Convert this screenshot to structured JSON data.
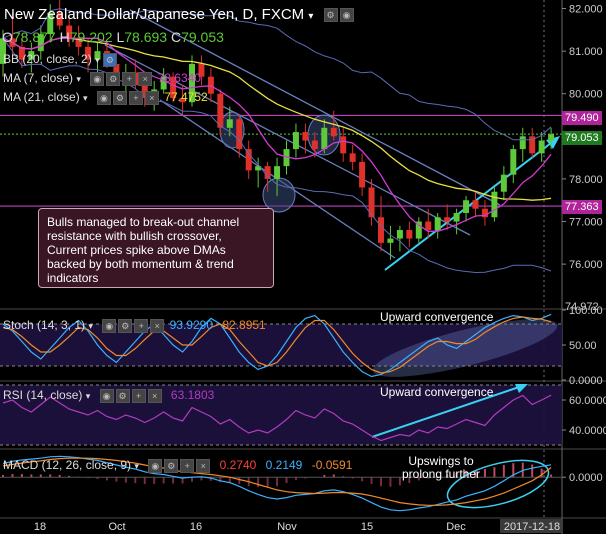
{
  "title": "New Zealand Dollar/Japanese Yen, D, FXCM",
  "ohlc": {
    "o_label": "O",
    "o": "78.877",
    "h_label": "H",
    "h": "79.202",
    "l_label": "L",
    "l": "78.693",
    "c_label": "C",
    "c": "79.053"
  },
  "indicators_main": [
    {
      "label": "BB (20, close, 2)",
      "value": ""
    },
    {
      "label": "MA (7, close)",
      "value": "78.6340"
    },
    {
      "label": "MA (21, close)",
      "value": "77.4752"
    }
  ],
  "price_tags": {
    "upper": "79.490",
    "current": "79.053",
    "lower": "77.363",
    "bottom": "74.972"
  },
  "annotation_text": "Bulls managed to break-out channel resistance with bullish crossover, Current prices spike above DMAs backed by both momentum & trend indicators",
  "stoch": {
    "label": "Stoch (14, 3, 1)",
    "k": "93.9290",
    "d": "82.8951",
    "note": "Upward convergence"
  },
  "rsi": {
    "label": "RSI (14, close)",
    "value": "63.1803",
    "note": "Upward convergence"
  },
  "macd": {
    "label": "MACD (12, 26, close, 9)",
    "v1": "0.2740",
    "v2": "0.2149",
    "v3": "-0.0591",
    "note": "Upswings to prolong further"
  },
  "colors": {
    "up": "#5ec93a",
    "down": "#e0302a",
    "ma7": "#d03cd0",
    "ma21": "#e8e040",
    "bb": "#5a6bb5",
    "accent": "#3ad0f0",
    "level": "#c040c0"
  },
  "chart_data": [
    {
      "type": "candlestick",
      "title": "New Zealand Dollar/Japanese Yen, D, FXCM",
      "y_axis_ticks": [
        "82.000",
        "81.000",
        "80.000",
        "79.000",
        "78.000",
        "77.000",
        "76.000"
      ],
      "ylim": [
        74.97,
        82.2
      ],
      "x_labels": [
        "18",
        "Oct",
        "16",
        "Nov",
        "15",
        "Dec",
        "2017-12-18"
      ],
      "ohlc": [
        [
          80.7,
          81.5,
          80.4,
          81.3
        ],
        [
          81.3,
          81.9,
          80.9,
          81.1
        ],
        [
          81.1,
          81.3,
          80.6,
          80.8
        ],
        [
          80.8,
          81.2,
          80.5,
          81.0
        ],
        [
          81.0,
          81.6,
          80.8,
          81.4
        ],
        [
          81.4,
          82.1,
          81.2,
          81.9
        ],
        [
          81.9,
          82.2,
          81.5,
          81.6
        ],
        [
          81.6,
          81.8,
          81.1,
          81.3
        ],
        [
          81.3,
          81.6,
          80.9,
          81.1
        ],
        [
          81.1,
          81.3,
          80.5,
          80.8
        ],
        [
          80.8,
          81.2,
          80.5,
          81.0
        ],
        [
          81.0,
          81.2,
          80.6,
          80.7
        ],
        [
          80.7,
          80.9,
          80.2,
          80.4
        ],
        [
          80.4,
          80.7,
          80.0,
          80.5
        ],
        [
          80.5,
          80.8,
          80.1,
          80.2
        ],
        [
          80.2,
          80.4,
          79.7,
          79.9
        ],
        [
          79.9,
          80.3,
          79.6,
          80.1
        ],
        [
          80.1,
          80.6,
          80.0,
          80.4
        ],
        [
          80.4,
          80.5,
          79.8,
          79.9
        ],
        [
          79.9,
          80.2,
          79.5,
          79.8
        ],
        [
          79.8,
          80.9,
          79.7,
          80.7
        ],
        [
          80.7,
          80.9,
          80.2,
          80.4
        ],
        [
          80.4,
          80.6,
          79.8,
          80.0
        ],
        [
          80.0,
          80.1,
          79.0,
          79.2
        ],
        [
          79.2,
          79.7,
          79.0,
          79.4
        ],
        [
          79.4,
          79.5,
          78.5,
          78.7
        ],
        [
          78.7,
          78.9,
          78.0,
          78.2
        ],
        [
          78.2,
          78.5,
          77.8,
          78.3
        ],
        [
          78.3,
          78.4,
          77.7,
          78.0
        ],
        [
          78.0,
          78.5,
          77.6,
          78.3
        ],
        [
          78.3,
          78.9,
          78.1,
          78.7
        ],
        [
          78.7,
          79.3,
          78.5,
          79.1
        ],
        [
          79.1,
          79.3,
          78.6,
          78.9
        ],
        [
          78.9,
          79.1,
          78.5,
          78.7
        ],
        [
          78.7,
          79.4,
          78.6,
          79.2
        ],
        [
          79.2,
          79.6,
          78.9,
          79.0
        ],
        [
          79.0,
          79.2,
          78.4,
          78.6
        ],
        [
          78.6,
          78.8,
          78.2,
          78.4
        ],
        [
          78.4,
          78.6,
          77.6,
          77.8
        ],
        [
          77.8,
          78.0,
          76.9,
          77.1
        ],
        [
          77.1,
          77.6,
          76.3,
          76.5
        ],
        [
          76.5,
          76.9,
          76.1,
          76.6
        ],
        [
          76.6,
          76.9,
          76.3,
          76.8
        ],
        [
          76.8,
          77.0,
          76.4,
          76.6
        ],
        [
          76.6,
          77.1,
          76.5,
          77.0
        ],
        [
          77.0,
          77.3,
          76.6,
          76.8
        ],
        [
          76.8,
          77.2,
          76.6,
          77.1
        ],
        [
          77.1,
          77.4,
          76.8,
          77.0
        ],
        [
          77.0,
          77.3,
          76.7,
          77.2
        ],
        [
          77.2,
          77.6,
          77.0,
          77.5
        ],
        [
          77.5,
          77.7,
          77.1,
          77.3
        ],
        [
          77.3,
          77.5,
          76.9,
          77.1
        ],
        [
          77.1,
          77.8,
          77.0,
          77.7
        ],
        [
          77.7,
          78.3,
          77.5,
          78.1
        ],
        [
          78.1,
          78.8,
          77.9,
          78.7
        ],
        [
          78.7,
          79.2,
          78.4,
          79.0
        ],
        [
          79.0,
          79.2,
          78.5,
          78.6
        ],
        [
          78.6,
          79.1,
          78.4,
          78.9
        ],
        [
          78.9,
          79.2,
          78.7,
          79.05
        ]
      ]
    },
    {
      "type": "line",
      "title": "Stoch (14, 3, 1)",
      "y_axis_ticks": [
        "100.00",
        "50.00",
        "0.0000"
      ],
      "ylim": [
        0,
        100
      ],
      "series": [
        {
          "name": "K",
          "values": [
            80,
            70,
            55,
            40,
            30,
            45,
            60,
            75,
            85,
            70,
            50,
            35,
            25,
            40,
            55,
            70,
            80,
            65,
            50,
            40,
            55,
            75,
            88,
            80,
            60,
            40,
            25,
            15,
            20,
            35,
            55,
            75,
            88,
            92,
            80,
            60,
            40,
            25,
            12,
            5,
            8,
            15,
            25,
            35,
            45,
            55,
            60,
            50,
            45,
            55,
            65,
            75,
            82,
            88,
            92,
            90,
            85,
            88,
            93.9
          ]
        },
        {
          "name": "D",
          "values": [
            75,
            72,
            62,
            50,
            40,
            40,
            50,
            62,
            75,
            72,
            60,
            45,
            35,
            35,
            45,
            58,
            70,
            70,
            60,
            50,
            50,
            62,
            75,
            80,
            72,
            55,
            40,
            25,
            20,
            25,
            40,
            58,
            75,
            85,
            85,
            72,
            55,
            38,
            25,
            15,
            10,
            12,
            18,
            28,
            38,
            48,
            55,
            55,
            52,
            52,
            58,
            68,
            76,
            83,
            88,
            90,
            88,
            87,
            82.9
          ]
        }
      ]
    },
    {
      "type": "line",
      "title": "RSI (14, close)",
      "y_axis_ticks": [
        "60.0000",
        "40.0000"
      ],
      "ylim": [
        28,
        72
      ],
      "series": [
        {
          "name": "RSI",
          "values": [
            58,
            60,
            55,
            52,
            57,
            62,
            58,
            54,
            52,
            50,
            53,
            49,
            47,
            50,
            48,
            45,
            48,
            52,
            48,
            46,
            55,
            52,
            49,
            44,
            47,
            42,
            38,
            40,
            38,
            42,
            47,
            53,
            50,
            48,
            54,
            51,
            46,
            44,
            40,
            36,
            33,
            35,
            37,
            36,
            40,
            38,
            42,
            41,
            44,
            47,
            45,
            43,
            50,
            55,
            60,
            63,
            57,
            60,
            63.2
          ]
        }
      ]
    },
    {
      "type": "line",
      "title": "MACD (12, 26, close, 9)",
      "y_axis_ticks": [
        "0.0000"
      ],
      "ylim": [
        -0.9,
        0.6
      ],
      "series": [
        {
          "name": "MACD",
          "values": [
            0.3,
            0.35,
            0.38,
            0.4,
            0.42,
            0.45,
            0.46,
            0.45,
            0.43,
            0.4,
            0.37,
            0.32,
            0.27,
            0.22,
            0.18,
            0.12,
            0.08,
            0.06,
            0.02,
            -0.02,
            0.0,
            0.01,
            -0.02,
            -0.08,
            -0.12,
            -0.2,
            -0.3,
            -0.38,
            -0.45,
            -0.48,
            -0.45,
            -0.4,
            -0.38,
            -0.36,
            -0.3,
            -0.28,
            -0.32,
            -0.38,
            -0.46,
            -0.56,
            -0.66,
            -0.72,
            -0.74,
            -0.72,
            -0.68,
            -0.65,
            -0.6,
            -0.55,
            -0.5,
            -0.42,
            -0.36,
            -0.3,
            -0.2,
            -0.08,
            0.05,
            0.15,
            0.2,
            0.24,
            0.274
          ]
        },
        {
          "name": "Signal",
          "values": [
            0.25,
            0.28,
            0.31,
            0.34,
            0.36,
            0.39,
            0.41,
            0.42,
            0.42,
            0.42,
            0.41,
            0.39,
            0.37,
            0.34,
            0.31,
            0.27,
            0.23,
            0.2,
            0.16,
            0.12,
            0.1,
            0.08,
            0.06,
            0.03,
            0.0,
            -0.05,
            -0.1,
            -0.16,
            -0.22,
            -0.28,
            -0.32,
            -0.34,
            -0.35,
            -0.36,
            -0.35,
            -0.34,
            -0.34,
            -0.35,
            -0.37,
            -0.41,
            -0.46,
            -0.51,
            -0.56,
            -0.59,
            -0.61,
            -0.62,
            -0.62,
            -0.61,
            -0.59,
            -0.56,
            -0.52,
            -0.48,
            -0.42,
            -0.35,
            -0.26,
            -0.17,
            -0.08,
            0.05,
            0.215
          ]
        }
      ]
    }
  ]
}
